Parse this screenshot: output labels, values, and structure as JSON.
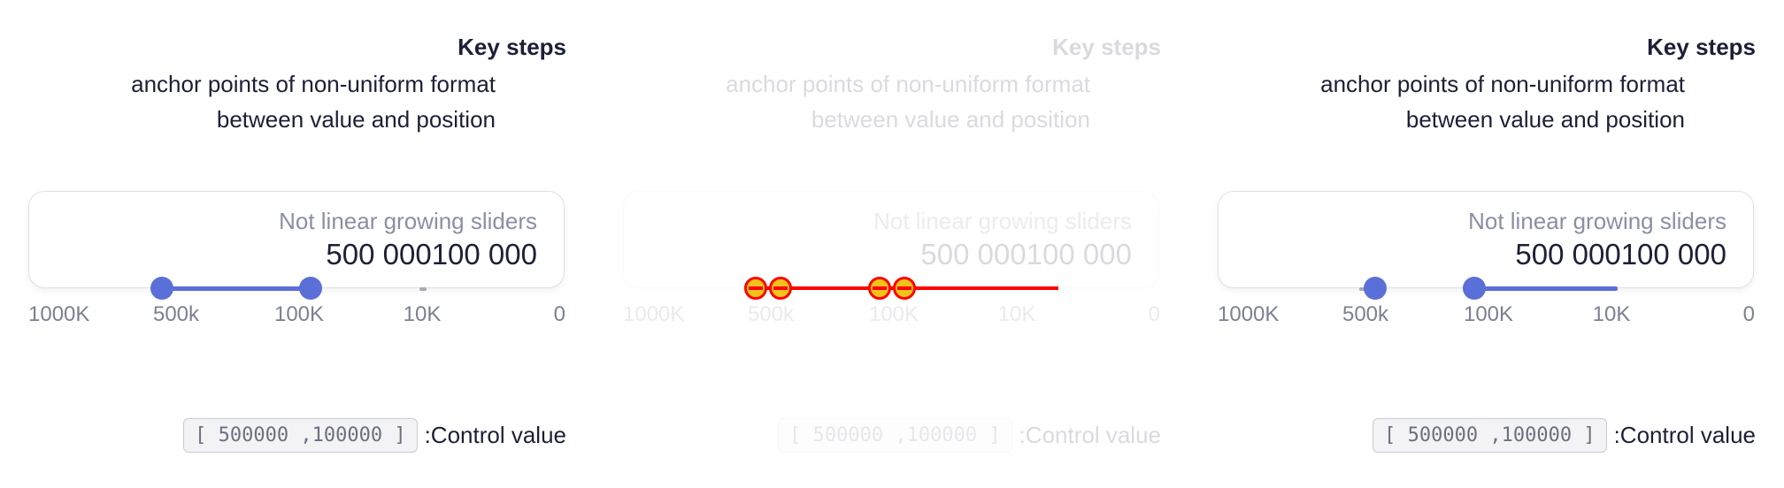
{
  "panels": [
    {
      "heading": "Key steps",
      "subtitle_line1": "anchor points of non-uniform format",
      "subtitle_line2": "between value and position",
      "card_label": "Not linear growing sliders",
      "value_a": "500 000",
      "value_b": "100 000",
      "ticks": [
        "1000K",
        "500k",
        "100K",
        "10K",
        "0"
      ],
      "control_code": "[ 500000 ,100000 ]",
      "control_label": ":Control value"
    },
    {
      "heading": "Key steps",
      "subtitle_line1": "anchor points of non-uniform format",
      "subtitle_line2": "between value and position",
      "card_label": "Not linear growing sliders",
      "value_a": "500 000",
      "value_b": "100 000",
      "ticks": [
        "1000K",
        "500k",
        "100K",
        "10K",
        "0"
      ],
      "control_code": "[ 500000 ,100000 ]",
      "control_label": ":Control value"
    },
    {
      "heading": "Key steps",
      "subtitle_line1": "anchor points of non-uniform format",
      "subtitle_line2": "between value and position",
      "card_label": "Not linear growing sliders",
      "value_a": "500 000",
      "value_b": "100 000",
      "ticks": [
        "1000K",
        "500k",
        "100K",
        "10K",
        "0"
      ],
      "control_code": "[ 500000 ,100000 ]",
      "control_label": ":Control value"
    }
  ],
  "colors": {
    "accent": "#5b6fd8",
    "text": "#1b2036",
    "muted": "#8a8fa3",
    "debug": "#ff0000"
  }
}
